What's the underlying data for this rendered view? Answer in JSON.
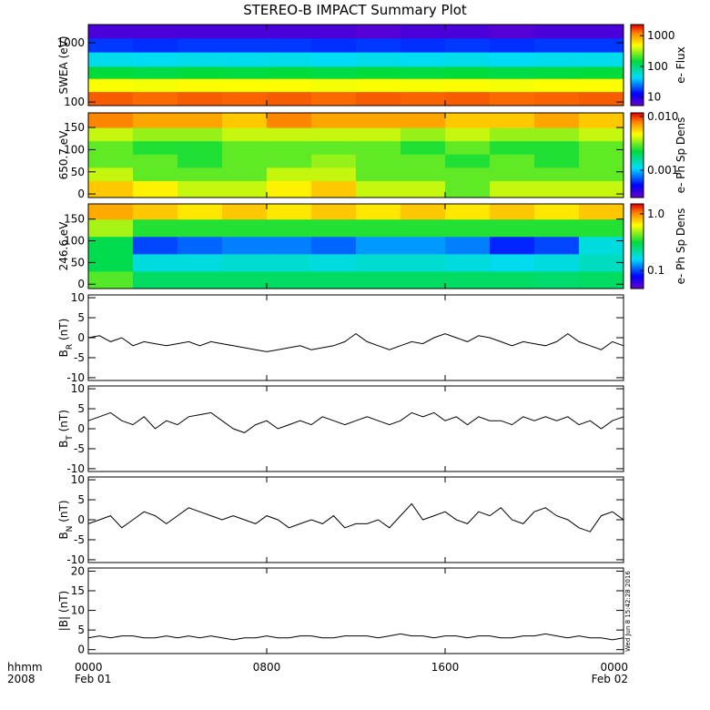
{
  "title": "STEREO-B IMPACT Summary Plot",
  "timestamp": "Wed Jun 8 15:42:28 2016",
  "corner_labels": [
    "hhmm",
    "2008"
  ],
  "chart_data": [
    {
      "type": "heatmap",
      "ylabel": "SWEA (eV)",
      "ylog": true,
      "ylim": [
        87,
        2030
      ],
      "yticks": [
        100,
        1000
      ],
      "xlim": [
        0,
        24
      ],
      "x_edges": [
        0,
        2,
        4,
        6,
        8,
        10,
        12,
        14,
        16,
        18,
        20,
        22,
        24
      ],
      "y_edges": [
        87,
        150,
        250,
        400,
        700,
        1200,
        2030
      ],
      "values": [
        [
          1500,
          1400,
          1500,
          1450,
          1500,
          1400,
          1500,
          1450,
          1500,
          1400,
          1450,
          1500
        ],
        [
          500,
          480,
          520,
          500,
          510,
          480,
          500,
          490,
          520,
          480,
          500,
          510
        ],
        [
          150,
          140,
          150,
          145,
          150,
          140,
          150,
          145,
          150,
          140,
          145,
          150
        ],
        [
          50,
          48,
          50,
          49,
          50,
          47,
          50,
          48,
          50,
          47,
          49,
          50
        ],
        [
          18,
          17,
          18,
          18,
          18,
          17,
          18,
          17,
          18,
          17,
          18,
          18
        ],
        [
          7,
          7,
          7,
          7,
          7,
          7,
          6.5,
          7,
          7,
          6.5,
          7,
          7
        ]
      ],
      "clim": [
        5.3,
        2300
      ],
      "cticks": [
        10,
        100,
        1000
      ],
      "clabel": "e- Flux"
    },
    {
      "type": "heatmap",
      "ylabel": "650.7 eV",
      "ylim": [
        -8,
        183
      ],
      "yticks": [
        0,
        50,
        100,
        150
      ],
      "xlim": [
        0,
        24
      ],
      "x_edges": [
        0,
        2,
        4,
        6,
        8,
        10,
        12,
        14,
        16,
        18,
        20,
        22,
        24
      ],
      "y_edges": [
        -8,
        30,
        60,
        90,
        120,
        150,
        183
      ],
      "values": [
        [
          0.006,
          0.005,
          0.004,
          0.004,
          0.005,
          0.006,
          0.004,
          0.004,
          0.003,
          0.004,
          0.004,
          0.004
        ],
        [
          0.004,
          0.003,
          0.003,
          0.003,
          0.004,
          0.004,
          0.003,
          0.003,
          0.003,
          0.003,
          0.003,
          0.003
        ],
        [
          0.003,
          0.003,
          0.0025,
          0.003,
          0.003,
          0.0035,
          0.003,
          0.003,
          0.0025,
          0.003,
          0.0025,
          0.003
        ],
        [
          0.003,
          0.0025,
          0.0025,
          0.003,
          0.003,
          0.003,
          0.003,
          0.0025,
          0.003,
          0.0025,
          0.0025,
          0.003
        ],
        [
          0.004,
          0.0035,
          0.0035,
          0.004,
          0.004,
          0.004,
          0.004,
          0.0035,
          0.004,
          0.0035,
          0.0035,
          0.004
        ],
        [
          0.008,
          0.007,
          0.007,
          0.006,
          0.008,
          0.007,
          0.007,
          0.007,
          0.006,
          0.006,
          0.007,
          0.006
        ]
      ],
      "clim": [
        0.00031,
        0.0117
      ],
      "cticks": [
        {
          "value": 0.01,
          "label": "0.010"
        },
        0.001
      ],
      "clabel": "e- Ph Sp Dens"
    },
    {
      "type": "heatmap",
      "ylabel": "246.6 eV",
      "ylim": [
        -10,
        185
      ],
      "yticks": [
        0,
        50,
        100,
        150
      ],
      "xlim": [
        0,
        24
      ],
      "x_edges": [
        0,
        2,
        4,
        6,
        8,
        10,
        12,
        14,
        16,
        18,
        20,
        22,
        24
      ],
      "y_edges": [
        -10,
        30,
        70,
        110,
        150,
        185
      ],
      "values": [
        [
          0.4,
          0.28,
          0.28,
          0.28,
          0.28,
          0.28,
          0.28,
          0.28,
          0.28,
          0.28,
          0.27,
          0.28
        ],
        [
          0.3,
          0.18,
          0.18,
          0.19,
          0.19,
          0.18,
          0.19,
          0.19,
          0.18,
          0.17,
          0.18,
          0.2
        ],
        [
          0.3,
          0.1,
          0.11,
          0.12,
          0.12,
          0.11,
          0.13,
          0.13,
          0.12,
          0.09,
          0.1,
          0.18
        ],
        [
          0.5,
          0.35,
          0.35,
          0.35,
          0.35,
          0.35,
          0.35,
          0.35,
          0.35,
          0.35,
          0.35,
          0.35
        ],
        [
          0.9,
          0.8,
          0.7,
          0.8,
          0.7,
          0.8,
          0.7,
          0.8,
          0.7,
          0.8,
          0.7,
          0.8
        ]
      ],
      "clim": [
        0.048,
        1.5
      ],
      "cticks": [
        {
          "value": 1,
          "label": "1.0"
        },
        0.1
      ],
      "clabel": "e- Ph Sp Dens"
    },
    {
      "type": "line",
      "ylabel_parts": [
        "B",
        "R",
        " (nT)"
      ],
      "ylim": [
        -10.7,
        10.7
      ],
      "yticks": [
        -10,
        -5,
        0,
        5,
        10
      ],
      "xlim": [
        0,
        24
      ],
      "color": "#000000",
      "x": [
        0,
        0.5,
        1,
        1.5,
        2,
        2.5,
        3,
        3.5,
        4,
        4.5,
        5,
        5.5,
        6,
        6.5,
        7,
        7.5,
        8,
        8.5,
        9,
        9.5,
        10,
        10.5,
        11,
        11.5,
        12,
        12.5,
        13,
        13.5,
        14,
        14.5,
        15,
        15.5,
        16,
        16.5,
        17,
        17.5,
        18,
        18.5,
        19,
        19.5,
        20,
        20.5,
        21,
        21.5,
        22,
        22.5,
        23,
        23.5,
        24
      ],
      "values": [
        0,
        0.5,
        -1,
        0,
        -2,
        -1,
        -1.5,
        -2,
        -1.5,
        -1,
        -2,
        -1,
        -1.5,
        -2,
        -2.5,
        -3,
        -3.5,
        -3,
        -2.5,
        -2,
        -3,
        -2.5,
        -2,
        -1,
        1,
        -1,
        -2,
        -3,
        -2,
        -1,
        -1.5,
        0,
        1,
        0,
        -1,
        0.5,
        0,
        -1,
        -2,
        -1,
        -1.5,
        -2,
        -1,
        1,
        -1,
        -2,
        -3,
        -1,
        -2
      ]
    },
    {
      "type": "line",
      "ylabel_parts": [
        "B",
        "T",
        " (nT)"
      ],
      "ylim": [
        -10.7,
        10.7
      ],
      "yticks": [
        -10,
        -5,
        0,
        5,
        10
      ],
      "xlim": [
        0,
        24
      ],
      "color": "#000000",
      "x": [
        0,
        0.5,
        1,
        1.5,
        2,
        2.5,
        3,
        3.5,
        4,
        4.5,
        5,
        5.5,
        6,
        6.5,
        7,
        7.5,
        8,
        8.5,
        9,
        9.5,
        10,
        10.5,
        11,
        11.5,
        12,
        12.5,
        13,
        13.5,
        14,
        14.5,
        15,
        15.5,
        16,
        16.5,
        17,
        17.5,
        18,
        18.5,
        19,
        19.5,
        20,
        20.5,
        21,
        21.5,
        22,
        22.5,
        23,
        23.5,
        24
      ],
      "values": [
        2,
        3,
        4,
        2,
        1,
        3,
        0,
        2,
        1,
        3,
        3.5,
        4,
        2,
        0,
        -1,
        1,
        2,
        0,
        1,
        2,
        1,
        3,
        2,
        1,
        2,
        3,
        2,
        1,
        2,
        4,
        3,
        4,
        2,
        3,
        1,
        3,
        2,
        2,
        1,
        3,
        2,
        3,
        2,
        3,
        1,
        2,
        0,
        2,
        3
      ]
    },
    {
      "type": "line",
      "ylabel_parts": [
        "B",
        "N",
        " (nT)"
      ],
      "ylim": [
        -10.7,
        10.7
      ],
      "yticks": [
        -10,
        -5,
        0,
        5,
        10
      ],
      "xlim": [
        0,
        24
      ],
      "color": "#000000",
      "x": [
        0,
        0.5,
        1,
        1.5,
        2,
        2.5,
        3,
        3.5,
        4,
        4.5,
        5,
        5.5,
        6,
        6.5,
        7,
        7.5,
        8,
        8.5,
        9,
        9.5,
        10,
        10.5,
        11,
        11.5,
        12,
        12.5,
        13,
        13.5,
        14,
        14.5,
        15,
        15.5,
        16,
        16.5,
        17,
        17.5,
        18,
        18.5,
        19,
        19.5,
        20,
        20.5,
        21,
        21.5,
        22,
        22.5,
        23,
        23.5,
        24
      ],
      "values": [
        -1,
        0,
        1,
        -2,
        0,
        2,
        1,
        -1,
        1,
        3,
        2,
        1,
        0,
        1,
        0,
        -1,
        1,
        0,
        -2,
        -1,
        0,
        -1,
        1,
        -2,
        -1,
        -1,
        0,
        -2,
        1,
        4,
        0,
        1,
        2,
        0,
        -1,
        2,
        1,
        3,
        0,
        -1,
        2,
        3,
        1,
        0,
        -2,
        -3,
        1,
        2,
        0
      ]
    },
    {
      "type": "line",
      "ylabel_parts": [
        "|B| (nT)"
      ],
      "ylim": [
        -1,
        20.8
      ],
      "yticks": [
        0,
        5,
        10,
        15,
        20
      ],
      "xlim": [
        0,
        24
      ],
      "color": "#000000",
      "x": [
        0,
        0.5,
        1,
        1.5,
        2,
        2.5,
        3,
        3.5,
        4,
        4.5,
        5,
        5.5,
        6,
        6.5,
        7,
        7.5,
        8,
        8.5,
        9,
        9.5,
        10,
        10.5,
        11,
        11.5,
        12,
        12.5,
        13,
        13.5,
        14,
        14.5,
        15,
        15.5,
        16,
        16.5,
        17,
        17.5,
        18,
        18.5,
        19,
        19.5,
        20,
        20.5,
        21,
        21.5,
        22,
        22.5,
        23,
        23.5,
        24
      ],
      "values": [
        3,
        3.5,
        3,
        3.5,
        3.5,
        3,
        3,
        3.5,
        3,
        3.5,
        3,
        3.5,
        3,
        2.5,
        3,
        3,
        3.5,
        3,
        3,
        3.5,
        3.5,
        3,
        3,
        3.5,
        3.5,
        3.5,
        3,
        3.5,
        4,
        3.5,
        3.5,
        3,
        3.5,
        3.5,
        3,
        3.5,
        3.5,
        3,
        3,
        3.5,
        3.5,
        4,
        3.5,
        3,
        3.5,
        3,
        3,
        2.5,
        3
      ],
      "xticks": [
        {
          "value": 0,
          "label": "0000"
        },
        {
          "value": 8,
          "label": "0800"
        },
        {
          "value": 16,
          "label": "1600"
        },
        {
          "value": 24,
          "label": "0000"
        }
      ],
      "xtick_dates": [
        "Feb 01",
        null,
        null,
        "Feb 02"
      ]
    }
  ]
}
